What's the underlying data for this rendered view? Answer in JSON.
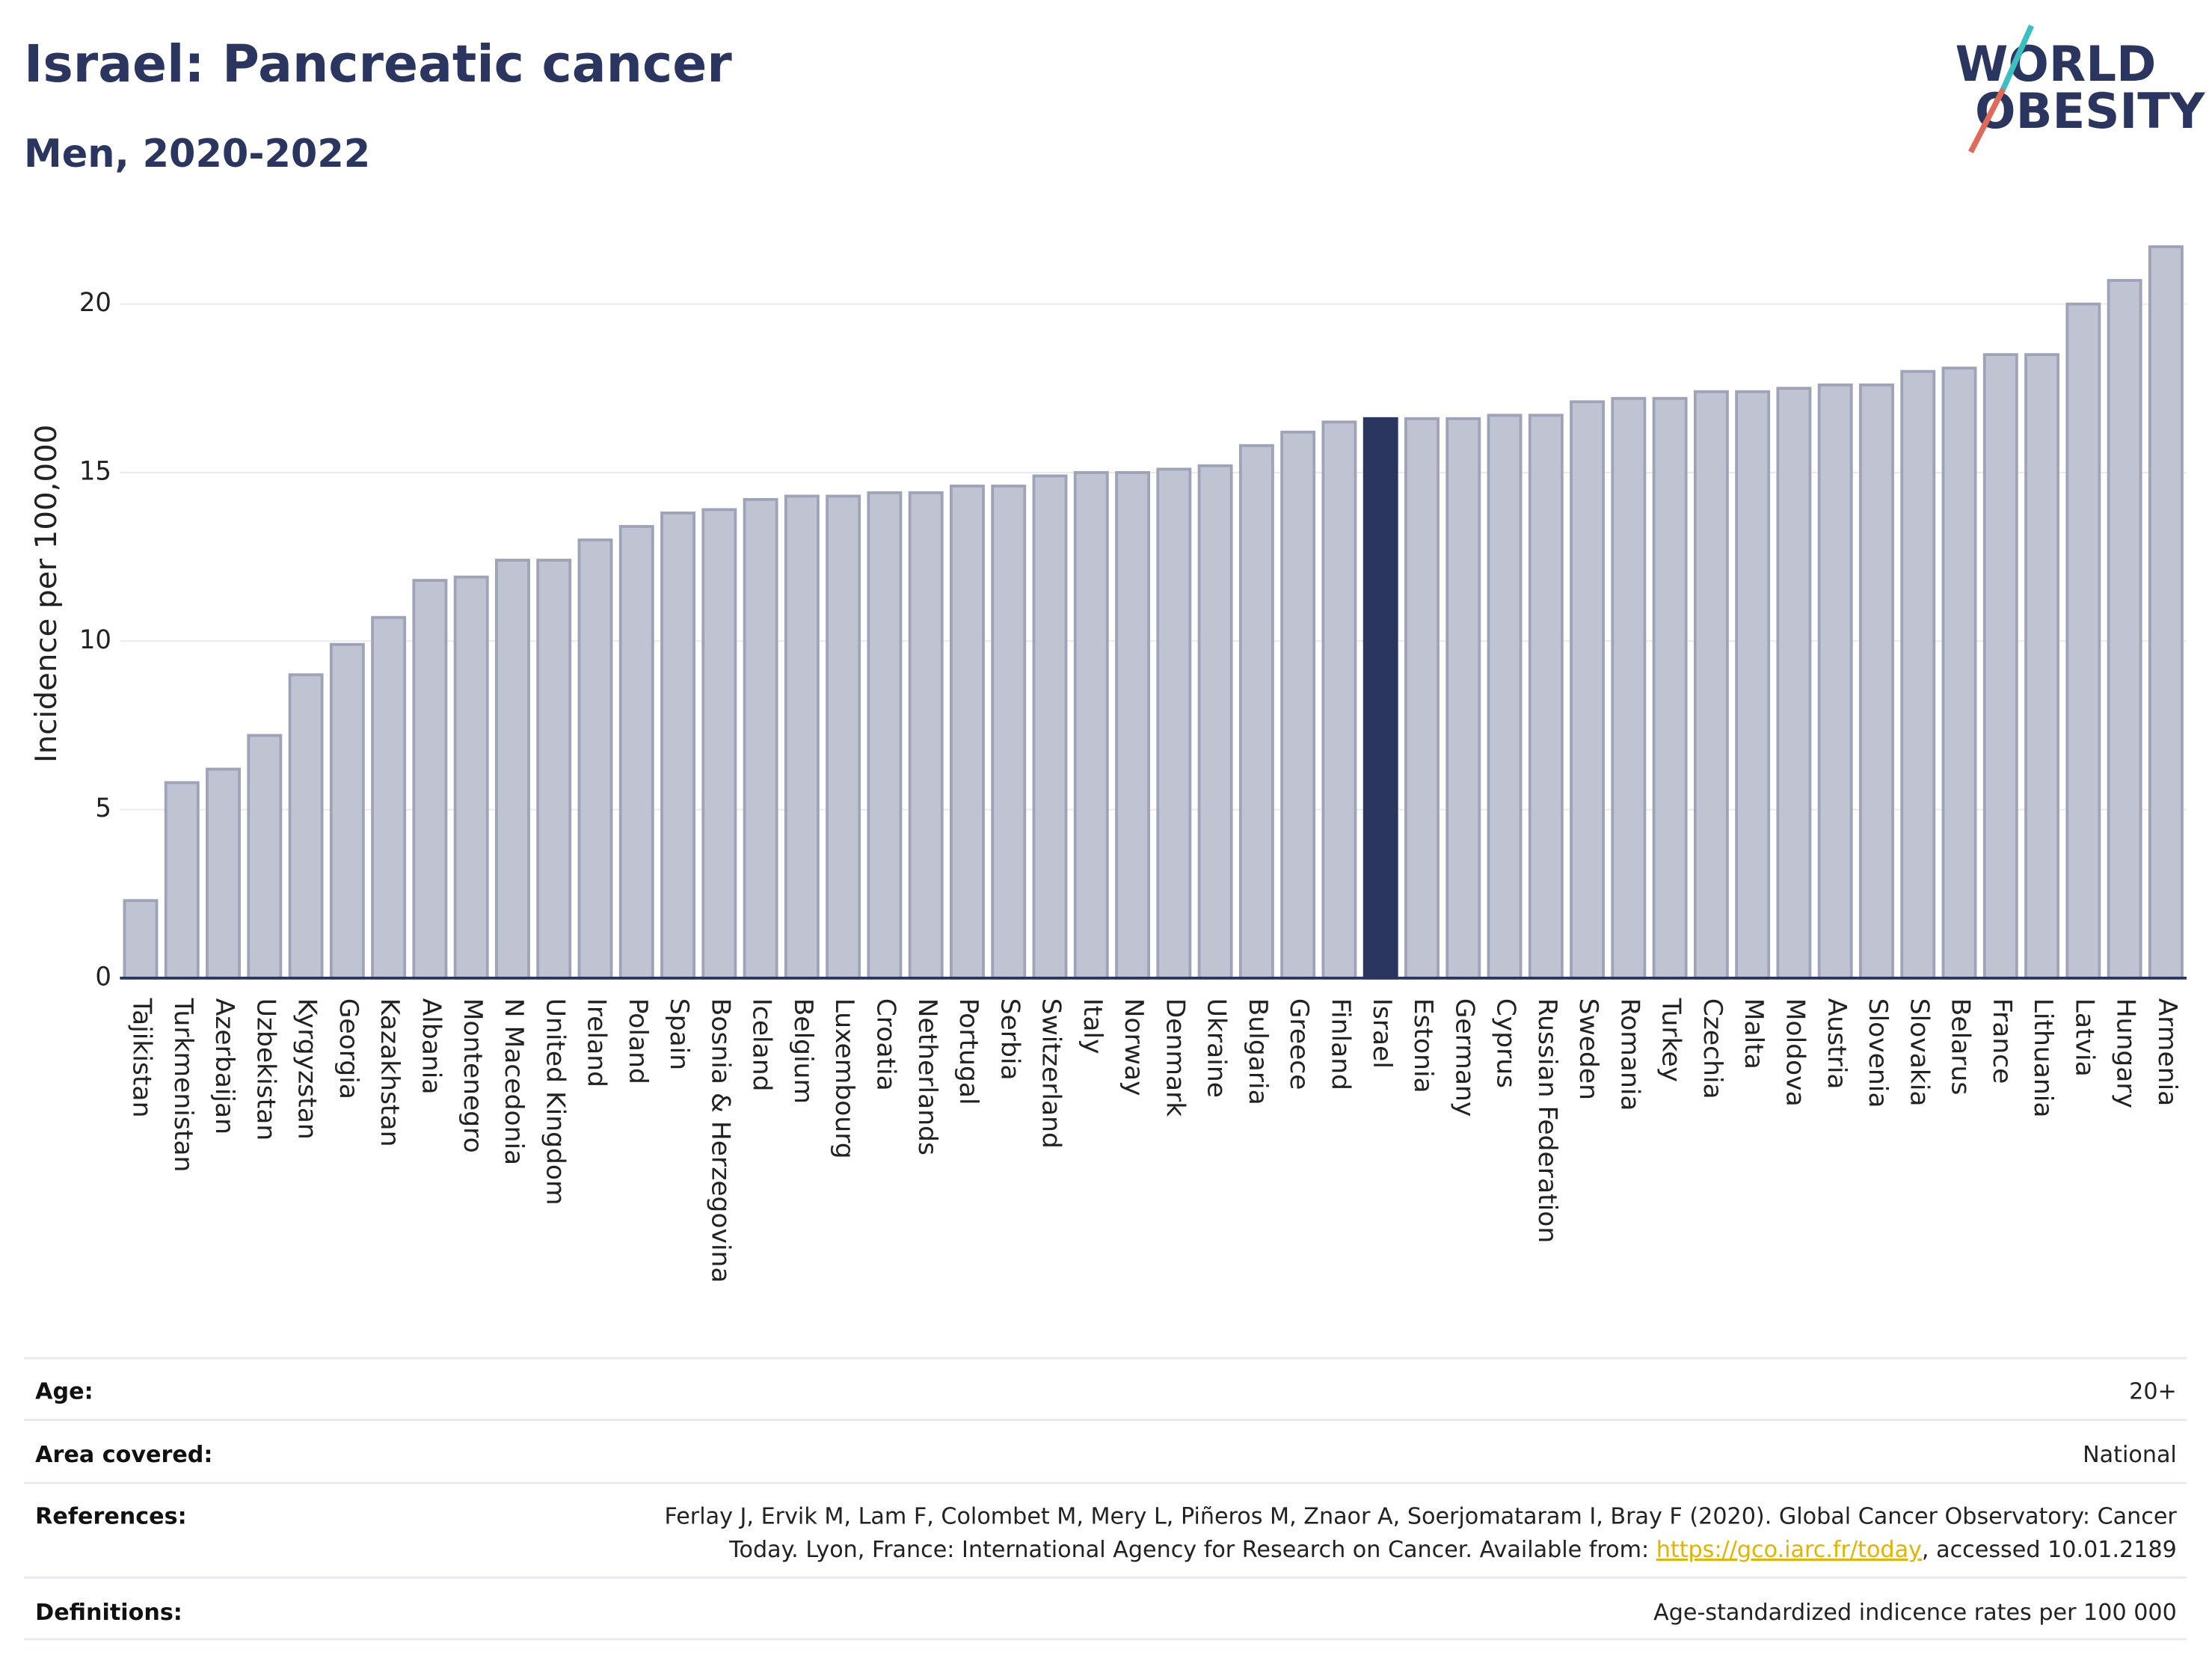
{
  "chart_data": {
    "type": "bar",
    "title": "Israel: Pancreatic cancer",
    "subtitle": "Men, 2020-2022",
    "y_label": "Incidence per 100,000",
    "categories": [
      "Tajikistan",
      "Turkmenistan",
      "Azerbaijan",
      "Uzbekistan",
      "Kyrgyzstan",
      "Georgia",
      "Kazakhstan",
      "Albania",
      "Montenegro",
      "N Macedonia",
      "United Kingdom",
      "Ireland",
      "Poland",
      "Spain",
      "Bosnia & Herzegovina",
      "Iceland",
      "Belgium",
      "Luxembourg",
      "Croatia",
      "Netherlands",
      "Portugal",
      "Serbia",
      "Switzerland",
      "Italy",
      "Norway",
      "Denmark",
      "Ukraine",
      "Bulgaria",
      "Greece",
      "Finland",
      "Israel",
      "Estonia",
      "Germany",
      "Cyprus",
      "Russian Federation",
      "Sweden",
      "Romania",
      "Turkey",
      "Czechia",
      "Malta",
      "Moldova",
      "Austria",
      "Slovenia",
      "Slovakia",
      "Belarus",
      "France",
      "Lithuania",
      "Latvia",
      "Hungary",
      "Armenia"
    ],
    "values": [
      2.3,
      5.8,
      6.2,
      7.2,
      9.0,
      9.9,
      10.7,
      11.8,
      11.9,
      12.4,
      12.4,
      13.0,
      13.4,
      13.8,
      13.9,
      14.2,
      14.3,
      14.3,
      14.4,
      14.4,
      14.6,
      14.6,
      14.9,
      15.0,
      15.0,
      15.1,
      15.2,
      15.8,
      16.2,
      16.5,
      16.6,
      16.6,
      16.6,
      16.7,
      16.7,
      17.1,
      17.2,
      17.2,
      17.4,
      17.4,
      17.5,
      17.6,
      17.6,
      18.0,
      18.1,
      18.5,
      18.5,
      20.0,
      20.7,
      21.7
    ],
    "color": "#bfc3d2",
    "edge_color": "#9ea3b8",
    "highlight": "Israel",
    "highlight_color": "#2a3560",
    "ylim": [
      0,
      22
    ],
    "yticks": [
      0,
      5,
      10,
      15,
      20
    ],
    "grid": true
  },
  "logo": [
    "WORLD",
    "OBESITY"
  ],
  "footer": [
    {
      "label": "Age:",
      "value": [
        "20+"
      ]
    },
    {
      "label": "Area covered:",
      "value": [
        "National"
      ]
    },
    {
      "label": "References:",
      "value": [
        "Ferlay J, Ervik M, Lam F, Colombet M, Mery L, Piñeros M, Znaor A, Soerjomataram I, Bray F (2020). Global Cancer Observatory: Cancer",
        "Today. Lyon, France: International Agency for Research on Cancer. Available from: ",
        "https://gco.iarc.fr/today",
        ", accessed 10.01.2189"
      ]
    },
    {
      "label": "Definitions:",
      "value": [
        "Age-standardized indicence rates per 100 000"
      ]
    }
  ]
}
